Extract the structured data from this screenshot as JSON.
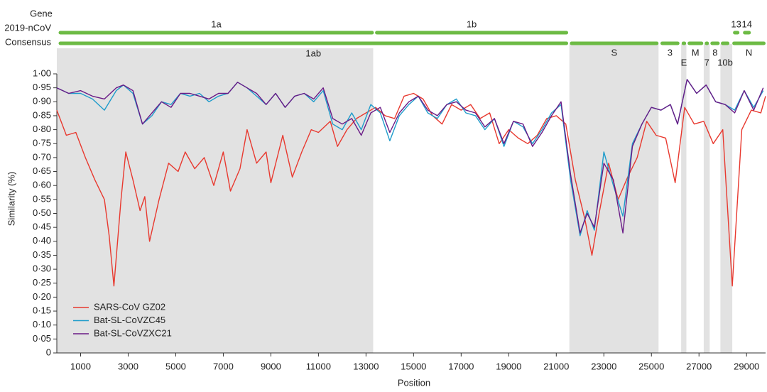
{
  "chart_data": {
    "type": "line",
    "xlabel": "Position",
    "ylabel": "Similarity (%)",
    "row_labels": [
      "Gene",
      "2019-nCoV",
      "Consensus"
    ],
    "xlim": [
      0,
      29800
    ],
    "ylim": [
      0,
      1
    ],
    "xticks": [
      1000,
      3000,
      5000,
      7000,
      9000,
      11000,
      13000,
      15000,
      17000,
      19000,
      21000,
      23000,
      25000,
      27000,
      29000
    ],
    "yticks": [
      0,
      {
        "value": 0.05,
        "label": "0·05"
      },
      {
        "value": 0.1,
        "label": "0·10"
      },
      {
        "value": 0.15,
        "label": "0·15"
      },
      {
        "value": 0.2,
        "label": "0·20"
      },
      {
        "value": 0.25,
        "label": "0·25"
      },
      {
        "value": 0.3,
        "label": "0·30"
      },
      {
        "value": 0.35,
        "label": "0·35"
      },
      {
        "value": 0.4,
        "label": "0·40"
      },
      {
        "value": 0.45,
        "label": "0·45"
      },
      {
        "value": 0.5,
        "label": "0·50"
      },
      {
        "value": 0.55,
        "label": "0·55"
      },
      {
        "value": 0.6,
        "label": "0·60"
      },
      {
        "value": 0.65,
        "label": "0·65"
      },
      {
        "value": 0.7,
        "label": "0·70"
      },
      {
        "value": 0.75,
        "label": "0·75"
      },
      {
        "value": 0.8,
        "label": "0·80"
      },
      {
        "value": 0.85,
        "label": "0·85"
      },
      {
        "value": 0.9,
        "label": "0·90"
      },
      {
        "value": 0.95,
        "label": "0·95"
      },
      {
        "value": 1,
        "label": "1·00"
      }
    ],
    "shaded_regions": [
      [
        0,
        13300
      ],
      [
        21550,
        25300
      ],
      [
        26250,
        26470
      ],
      [
        27200,
        27450
      ],
      [
        27900,
        28400
      ]
    ],
    "shade_color": "#e2e2e2",
    "gene_color": "#6dbb45",
    "genes_2019nCoV": [
      {
        "label": "1a",
        "start": 75,
        "end": 13330
      },
      {
        "label": "1b",
        "start": 13380,
        "end": 21500
      },
      {
        "label": "13",
        "start": 28430,
        "end": 28700
      },
      {
        "label": "14",
        "start": 28850,
        "end": 29180
      }
    ],
    "genes_consensus": [
      {
        "label": "1ab",
        "start": 75,
        "end": 21500
      },
      {
        "label": "S",
        "start": 21570,
        "end": 25300
      },
      {
        "label": "3",
        "start": 25380,
        "end": 26180
      },
      {
        "label": "E",
        "start": 26270,
        "end": 26460
      },
      {
        "label": "M",
        "start": 26520,
        "end": 27180
      },
      {
        "label": "7",
        "start": 27240,
        "end": 27420
      },
      {
        "label": "8",
        "start": 27480,
        "end": 27870
      },
      {
        "label": "10b",
        "start": 27920,
        "end": 28280
      },
      {
        "label": "N",
        "start": 28400,
        "end": 29800
      }
    ],
    "series": [
      {
        "name": "SARS-CoV GZ02",
        "color": "#e8392f",
        "x": [
          0,
          400,
          800,
          1200,
          1600,
          2000,
          2200,
          2400,
          2700,
          2900,
          3200,
          3500,
          3700,
          3900,
          4300,
          4700,
          5100,
          5400,
          5800,
          6200,
          6600,
          7000,
          7300,
          7700,
          8000,
          8400,
          8800,
          9000,
          9500,
          9900,
          10300,
          10700,
          11000,
          11500,
          11800,
          12200,
          12600,
          13000,
          13400,
          13800,
          14200,
          14600,
          15000,
          15400,
          15800,
          16200,
          16600,
          17000,
          17400,
          17800,
          18200,
          18600,
          19000,
          19400,
          19800,
          20200,
          20600,
          21000,
          21400,
          21800,
          22200,
          22500,
          22800,
          23200,
          23600,
          24000,
          24400,
          24800,
          25200,
          25600,
          26000,
          26400,
          26800,
          27200,
          27600,
          28000,
          28400,
          28800,
          29200,
          29600,
          29800
        ],
        "values": [
          0.87,
          0.78,
          0.79,
          0.7,
          0.62,
          0.55,
          0.42,
          0.24,
          0.55,
          0.72,
          0.62,
          0.51,
          0.56,
          0.4,
          0.55,
          0.68,
          0.65,
          0.72,
          0.66,
          0.7,
          0.6,
          0.72,
          0.58,
          0.66,
          0.8,
          0.68,
          0.72,
          0.61,
          0.78,
          0.63,
          0.72,
          0.8,
          0.79,
          0.83,
          0.74,
          0.8,
          0.84,
          0.86,
          0.88,
          0.85,
          0.84,
          0.92,
          0.93,
          0.91,
          0.85,
          0.82,
          0.89,
          0.87,
          0.89,
          0.84,
          0.86,
          0.75,
          0.8,
          0.77,
          0.75,
          0.78,
          0.84,
          0.85,
          0.82,
          0.62,
          0.48,
          0.35,
          0.5,
          0.68,
          0.55,
          0.63,
          0.7,
          0.83,
          0.78,
          0.77,
          0.61,
          0.88,
          0.82,
          0.83,
          0.75,
          0.8,
          0.24,
          0.8,
          0.87,
          0.86,
          0.92
        ]
      },
      {
        "name": "Bat-SL-CoVZC45",
        "color": "#1f9ccb",
        "x": [
          0,
          500,
          1000,
          1500,
          2000,
          2500,
          2800,
          3200,
          3600,
          4000,
          4400,
          4800,
          5200,
          5600,
          6000,
          6400,
          6800,
          7200,
          7600,
          8000,
          8400,
          8800,
          9200,
          9600,
          10000,
          10400,
          10800,
          11200,
          11600,
          12000,
          12400,
          12800,
          13200,
          13600,
          14000,
          14400,
          14800,
          15200,
          15600,
          16000,
          16400,
          16800,
          17200,
          17600,
          18000,
          18400,
          18800,
          19200,
          19600,
          20000,
          20400,
          20800,
          21200,
          21600,
          22000,
          22300,
          22600,
          23000,
          23400,
          23800,
          24200,
          24600,
          25000,
          25400,
          25800,
          26100,
          26500,
          26900,
          27300,
          27700,
          28100,
          28500,
          28900,
          29300,
          29700
        ],
        "values": [
          0.95,
          0.93,
          0.93,
          0.91,
          0.87,
          0.94,
          0.96,
          0.93,
          0.82,
          0.85,
          0.9,
          0.89,
          0.93,
          0.92,
          0.93,
          0.9,
          0.92,
          0.93,
          0.97,
          0.95,
          0.92,
          0.89,
          0.93,
          0.88,
          0.92,
          0.93,
          0.9,
          0.94,
          0.82,
          0.8,
          0.86,
          0.8,
          0.89,
          0.86,
          0.76,
          0.85,
          0.89,
          0.92,
          0.86,
          0.84,
          0.89,
          0.91,
          0.86,
          0.85,
          0.8,
          0.84,
          0.74,
          0.83,
          0.81,
          0.75,
          0.8,
          0.86,
          0.89,
          0.62,
          0.42,
          0.51,
          0.44,
          0.72,
          0.6,
          0.49,
          0.75,
          0.82,
          0.88,
          0.87,
          0.89,
          0.82,
          0.98,
          0.93,
          0.96,
          0.9,
          0.89,
          0.87,
          0.94,
          0.88,
          0.94
        ]
      },
      {
        "name": "Bat-SL-CoVZXC21",
        "color": "#6a1b86",
        "x": [
          0,
          500,
          1000,
          1500,
          2000,
          2500,
          2800,
          3200,
          3600,
          4000,
          4400,
          4800,
          5200,
          5600,
          6000,
          6400,
          6800,
          7200,
          7600,
          8000,
          8400,
          8800,
          9200,
          9600,
          10000,
          10400,
          10800,
          11200,
          11600,
          12000,
          12400,
          12800,
          13200,
          13600,
          14000,
          14400,
          14800,
          15200,
          15600,
          16000,
          16400,
          16800,
          17200,
          17600,
          18000,
          18400,
          18800,
          19200,
          19600,
          20000,
          20400,
          20800,
          21200,
          21600,
          22000,
          22300,
          22600,
          23000,
          23400,
          23800,
          24200,
          24600,
          25000,
          25400,
          25800,
          26100,
          26500,
          26900,
          27300,
          27700,
          28100,
          28500,
          28900,
          29300,
          29700
        ],
        "values": [
          0.95,
          0.93,
          0.94,
          0.92,
          0.91,
          0.95,
          0.96,
          0.94,
          0.82,
          0.86,
          0.9,
          0.88,
          0.93,
          0.93,
          0.92,
          0.91,
          0.93,
          0.93,
          0.97,
          0.95,
          0.93,
          0.89,
          0.93,
          0.88,
          0.92,
          0.93,
          0.91,
          0.95,
          0.84,
          0.82,
          0.84,
          0.78,
          0.86,
          0.88,
          0.79,
          0.86,
          0.9,
          0.92,
          0.87,
          0.85,
          0.89,
          0.9,
          0.87,
          0.86,
          0.81,
          0.84,
          0.75,
          0.83,
          0.82,
          0.74,
          0.79,
          0.85,
          0.9,
          0.64,
          0.43,
          0.5,
          0.45,
          0.68,
          0.62,
          0.43,
          0.74,
          0.82,
          0.88,
          0.87,
          0.89,
          0.82,
          0.98,
          0.93,
          0.96,
          0.9,
          0.89,
          0.86,
          0.94,
          0.87,
          0.95
        ]
      }
    ]
  }
}
